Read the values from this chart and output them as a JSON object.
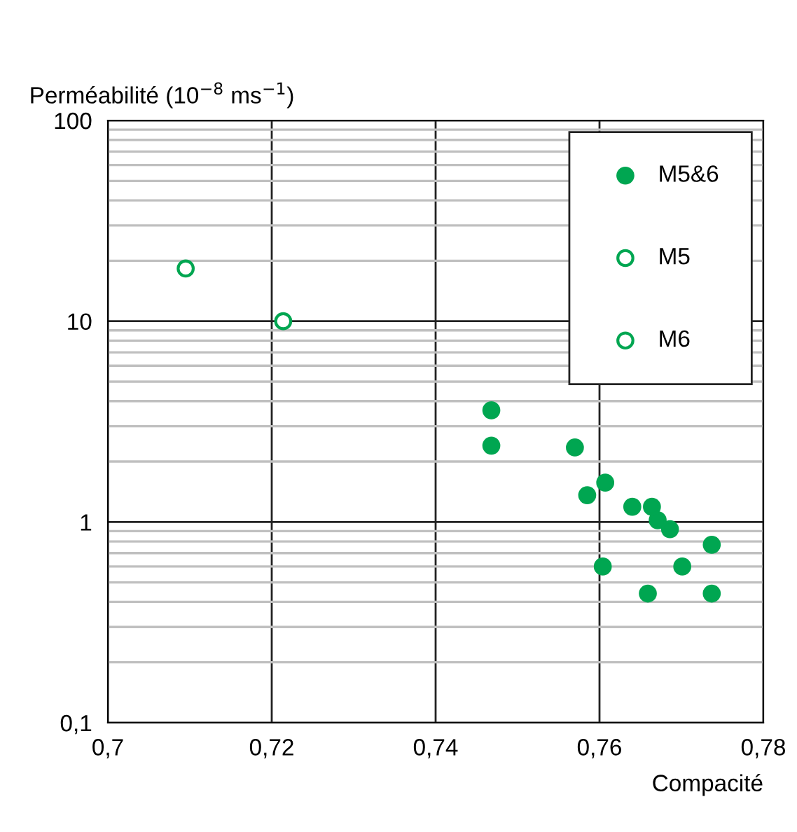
{
  "chart_data": {
    "type": "scatter",
    "xlabel": "Compacité",
    "ylabel": "Perméabilité (10$^{−8}$ ms$^{−1}$)",
    "log": "y",
    "xlim": [
      0.7,
      0.78
    ],
    "ylim": [
      0.1,
      100
    ],
    "xticks": [
      {
        "value": 0.7,
        "label": "0,7"
      },
      {
        "value": 0.72,
        "label": "0,72"
      },
      {
        "value": 0.74,
        "label": "0,74"
      },
      {
        "value": 0.76,
        "label": "0,76"
      },
      {
        "value": 0.78,
        "label": "0,78"
      }
    ],
    "yticks": [
      {
        "value": 0.1,
        "label": "0,1"
      },
      1,
      10,
      100
    ],
    "grid": true,
    "legend": "top right",
    "marker": "circle",
    "series": [
      {
        "name": "M5&6",
        "color": "#00a651",
        "x": [
          0.7468,
          0.7468,
          0.757,
          0.7607,
          0.7585,
          0.764,
          0.7664,
          0.7671,
          0.7686,
          0.7737,
          0.7604,
          0.7701,
          0.7659,
          0.7737
        ],
        "values": [
          3.6,
          2.4,
          2.35,
          1.57,
          1.36,
          1.19,
          1.19,
          1.02,
          0.92,
          0.77,
          0.6,
          0.6,
          0.44,
          0.44
        ]
      },
      {
        "name": "M5",
        "color": "#00a651",
        "marker": "open circle",
        "x": [
          0.7095
        ],
        "values": [
          18.3
        ]
      },
      {
        "name": "M6",
        "color": "#00a651",
        "marker": "open circle",
        "x": [
          0.7214
        ],
        "values": [
          10
        ]
      }
    ]
  }
}
